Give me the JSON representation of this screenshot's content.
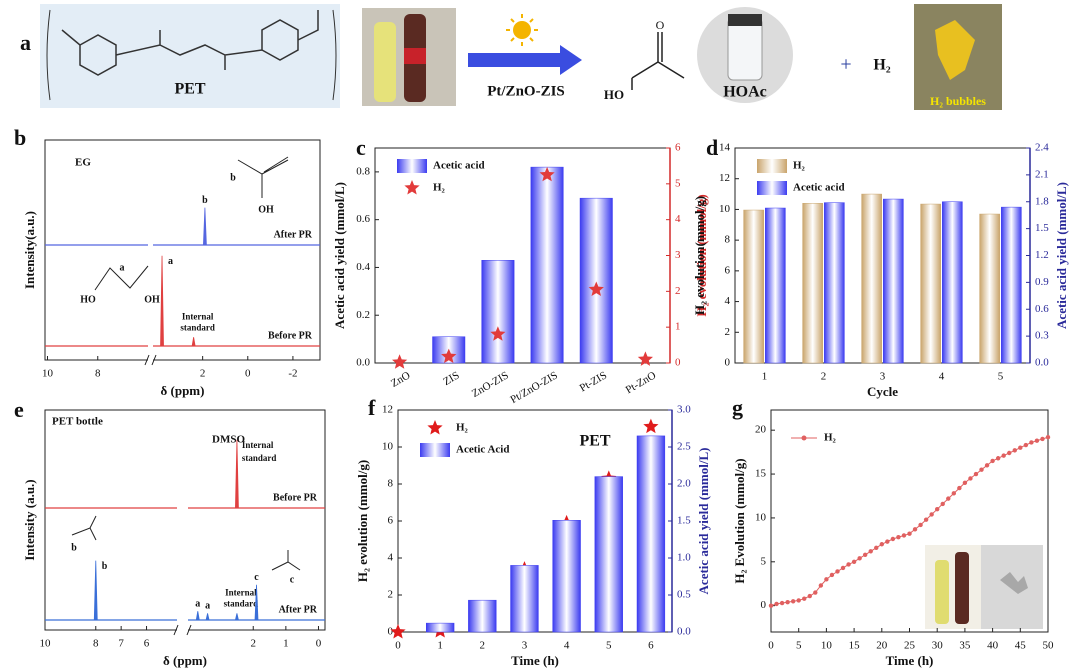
{
  "scheme": {
    "label": "a",
    "polymer": "PET",
    "catalyst": "Pt/ZnO-ZIS",
    "acid_group": "HO",
    "product": "HOAc",
    "plus": "+",
    "gas": "H₂",
    "photo_caption": "H₂ bubbles"
  },
  "chart_data": [
    {
      "type": "nmr",
      "label": "b",
      "annotations": [
        "EG"
      ],
      "xlabel": "δ (ppm)",
      "ylabel": "Intensity(a.u.)",
      "x_segments": [
        [
          10.1,
          6.0
        ],
        [
          4.2,
          -3.2
        ]
      ],
      "xticks": [
        10,
        8,
        2,
        0,
        -2
      ],
      "ylim": [
        0,
        100
      ],
      "molecule_labels": [
        "b",
        "OH",
        "HO",
        "a",
        "OH"
      ],
      "traces": [
        {
          "name": "After PR",
          "color": "#5566e0",
          "peaks": [
            {
              "ppm": 1.9,
              "height": 17,
              "label": [
                "b"
              ]
            }
          ]
        },
        {
          "name": "Before PR",
          "color": "#e04040",
          "peaks": [
            {
              "ppm": 3.8,
              "height": 41,
              "label": [
                "a"
              ]
            },
            {
              "ppm": 2.4,
              "height": 4,
              "label": [
                "Internal",
                "standard"
              ]
            }
          ]
        }
      ]
    },
    {
      "type": "bar",
      "label": "c",
      "categories": [
        "ZnO",
        "ZIS",
        "ZnO-ZIS",
        "Pt/ZnO-ZIS",
        "Pt-ZIS",
        "Pt-ZnO"
      ],
      "ylabel": "Acetic acid yield (mmol/L)",
      "y2label": "H₂ evolution (mmol/g)",
      "ylim": [
        0,
        0.9
      ],
      "yticks": [
        {
          "value": 0,
          "label": "0.0"
        },
        0.2,
        0.4,
        0.6,
        0.8
      ],
      "y2lim": [
        0,
        6
      ],
      "y2ticks": [
        0,
        1,
        2,
        3,
        4,
        5,
        6
      ],
      "y2_color": "#d42a2a",
      "legend": "upper left",
      "series": [
        {
          "name": "Acetic acid",
          "mark": "bar",
          "color": "#3b3bf0",
          "values": [
            0,
            0.11,
            0.43,
            0.82,
            0.69,
            0
          ]
        },
        {
          "name": "H₂",
          "mark": "star",
          "color": "#e23b3b",
          "axis": "y2",
          "values": [
            0.02,
            0.18,
            0.8,
            5.25,
            2.05,
            0.1
          ]
        }
      ]
    },
    {
      "type": "bar",
      "label": "d",
      "categories": [
        "1",
        "2",
        "3",
        "4",
        "5"
      ],
      "xlabel": "Cycle",
      "ylabel": "H₂ evolution(mmol/g)",
      "y2label": "Acetic acid yield (mmol/L)",
      "ylim": [
        0,
        14
      ],
      "yticks": [
        0,
        2,
        4,
        6,
        8,
        10,
        12,
        14
      ],
      "y2lim": [
        0,
        2.4
      ],
      "y2ticks": [
        {
          "value": 0,
          "label": "0.0"
        },
        0.3,
        0.6,
        0.9,
        1.2,
        1.5,
        1.8,
        2.1,
        2.4
      ],
      "y2_color": "#2a2a9a",
      "legend": "upper left",
      "series": [
        {
          "name": "H₂",
          "mark": "bar",
          "color": "#c9a46b",
          "values": [
            9.96,
            10.4,
            11.0,
            10.35,
            9.7
          ]
        },
        {
          "name": "Acetic acid",
          "mark": "bar",
          "color": "#3b3bf0",
          "axis": "y2",
          "values": [
            1.73,
            1.79,
            1.83,
            1.8,
            1.74
          ]
        }
      ]
    },
    {
      "type": "nmr",
      "label": "e",
      "annotations": [
        "PET bottle",
        "DMSO"
      ],
      "xlabel": "δ (ppm)",
      "ylabel": "Intensity (a.u.)",
      "x_segments": [
        [
          10.0,
          4.8
        ],
        [
          4.0,
          -0.2
        ]
      ],
      "xticks": [
        10,
        8,
        7,
        6,
        2,
        1,
        0
      ],
      "ylim": [
        0,
        100
      ],
      "molecule_labels": [
        "b",
        "c"
      ],
      "traces": [
        {
          "name": "Before PR",
          "color": "#e04040",
          "peaks": [
            {
              "ppm": 2.5,
              "height": 31,
              "label": [
                "Internal",
                "standard"
              ]
            }
          ]
        },
        {
          "name": "After PR",
          "color": "#3a6fd8",
          "peaks": [
            {
              "ppm": 8.0,
              "height": 27,
              "label": [
                "b"
              ]
            },
            {
              "ppm": 3.7,
              "height": 4,
              "label": [
                "a"
              ]
            },
            {
              "ppm": 3.4,
              "height": 3,
              "label": [
                "a"
              ]
            },
            {
              "ppm": 2.5,
              "height": 3,
              "label": [
                "Internal",
                "standard"
              ]
            },
            {
              "ppm": 1.9,
              "height": 16,
              "label": [
                "c"
              ]
            }
          ]
        }
      ]
    },
    {
      "type": "bar",
      "label": "f",
      "annotation": "PET",
      "x": [
        0,
        1,
        2,
        3,
        4,
        5,
        6
      ],
      "xlim": [
        0,
        6.5
      ],
      "xticks": [
        0,
        1,
        2,
        3,
        4,
        5,
        6
      ],
      "xlabel": "Time (h)",
      "ylabel": "H₂ evolution (mmol/g)",
      "y2label": "Acetic acid yield (mmol/L)",
      "ylim": [
        0,
        12
      ],
      "yticks": [
        0,
        2,
        4,
        6,
        8,
        10,
        12
      ],
      "y2lim": [
        0,
        3
      ],
      "y2ticks": [
        {
          "value": 0,
          "label": "0.0"
        },
        0.5,
        {
          "value": 1,
          "label": "1.0"
        },
        1.5,
        {
          "value": 2,
          "label": "2.0"
        },
        2.5,
        {
          "value": 3,
          "label": "3.0"
        }
      ],
      "y2_color": "#2a2a9a",
      "legend": "upper left",
      "series": [
        {
          "name": "H₂",
          "mark": "star",
          "color": "#e01b1b",
          "values": [
            0,
            0.05,
            1.3,
            3.4,
            5.9,
            8.3,
            11.1
          ]
        },
        {
          "name": "Acetic Acid",
          "mark": "bar",
          "color": "#3b3bf0",
          "axis": "y2",
          "values": [
            null,
            0.12,
            0.43,
            0.9,
            1.51,
            2.1,
            2.65
          ]
        }
      ]
    },
    {
      "type": "line",
      "label": "g",
      "x": [
        0,
        1,
        2,
        3,
        4,
        5,
        6,
        7,
        8,
        9,
        10,
        11,
        12,
        13,
        14,
        15,
        16,
        17,
        18,
        19,
        20,
        21,
        22,
        23,
        24,
        25,
        26,
        27,
        28,
        29,
        30,
        31,
        32,
        33,
        34,
        35,
        36,
        37,
        38,
        39,
        40,
        41,
        42,
        43,
        44,
        45,
        46,
        47,
        48,
        49,
        50
      ],
      "xlim": [
        0,
        50
      ],
      "xticks": [
        0,
        5,
        10,
        15,
        20,
        25,
        30,
        35,
        40,
        45,
        50
      ],
      "ylim": [
        -3,
        22.3
      ],
      "yticks": [
        0,
        5,
        10,
        15,
        20
      ],
      "xlabel": "Time (h)",
      "ylabel": "H₂ Evolution (mmol/g)",
      "legend": "upper left",
      "series": [
        {
          "name": "H₂",
          "color": "#e06060",
          "values": [
            0.0,
            0.2,
            0.3,
            0.4,
            0.5,
            0.6,
            0.8,
            1.1,
            1.5,
            2.3,
            3.0,
            3.5,
            3.9,
            4.3,
            4.7,
            5.0,
            5.4,
            5.8,
            6.2,
            6.6,
            7.0,
            7.3,
            7.6,
            7.8,
            8.0,
            8.2,
            8.7,
            9.2,
            9.8,
            10.4,
            11.0,
            11.6,
            12.2,
            12.8,
            13.4,
            14.0,
            14.5,
            15.0,
            15.5,
            16.0,
            16.5,
            16.8,
            17.1,
            17.4,
            17.7,
            18.0,
            18.3,
            18.6,
            18.8,
            19.0,
            19.2
          ]
        }
      ]
    }
  ]
}
